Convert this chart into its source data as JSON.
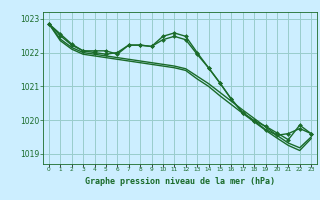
{
  "xlabel": "Graphe pression niveau de la mer (hPa)",
  "bg_color": "#cceeff",
  "grid_color": "#99cccc",
  "line_color": "#1a6b2a",
  "text_color": "#1a6b2a",
  "xlim": [
    -0.5,
    23.5
  ],
  "ylim": [
    1018.7,
    1023.2
  ],
  "yticks": [
    1019,
    1020,
    1021,
    1022,
    1023
  ],
  "xticks": [
    0,
    1,
    2,
    3,
    4,
    5,
    6,
    7,
    8,
    9,
    10,
    11,
    12,
    13,
    14,
    15,
    16,
    17,
    18,
    19,
    20,
    21,
    22,
    23
  ],
  "lines": [
    {
      "x": [
        0,
        1,
        2,
        3,
        4,
        5,
        6,
        7,
        8,
        9,
        10,
        11,
        12,
        13,
        14,
        15,
        16,
        17,
        18,
        19,
        20,
        21,
        22,
        23
      ],
      "y": [
        1022.85,
        1022.55,
        1022.25,
        1022.05,
        1022.05,
        1022.05,
        1021.95,
        1022.22,
        1022.22,
        1022.18,
        1022.38,
        1022.48,
        1022.38,
        1021.95,
        1021.55,
        1021.1,
        1020.62,
        1020.22,
        1019.98,
        1019.72,
        1019.55,
        1019.6,
        1019.75,
        1019.6
      ],
      "marker": true,
      "lw": 1.0
    },
    {
      "x": [
        0,
        1,
        2,
        3,
        4,
        5,
        6,
        7,
        8,
        9,
        10,
        11,
        12,
        13,
        14,
        15,
        16,
        17,
        18,
        19,
        20,
        21,
        22,
        23
      ],
      "y": [
        1022.85,
        1022.4,
        1022.15,
        1022.0,
        1021.95,
        1021.9,
        1021.85,
        1021.8,
        1021.75,
        1021.7,
        1021.65,
        1021.6,
        1021.52,
        1021.3,
        1021.08,
        1020.82,
        1020.56,
        1020.3,
        1020.05,
        1019.8,
        1019.55,
        1019.32,
        1019.18,
        1019.5
      ],
      "marker": false,
      "lw": 1.0
    },
    {
      "x": [
        0,
        1,
        2,
        3,
        4,
        5,
        6,
        7,
        8,
        9,
        10,
        11,
        12,
        13,
        14,
        15,
        16,
        17,
        18,
        19,
        20,
        21,
        22,
        23
      ],
      "y": [
        1022.85,
        1022.35,
        1022.1,
        1021.95,
        1021.9,
        1021.85,
        1021.8,
        1021.75,
        1021.7,
        1021.65,
        1021.6,
        1021.55,
        1021.47,
        1021.22,
        1021.0,
        1020.72,
        1020.46,
        1020.2,
        1019.95,
        1019.7,
        1019.47,
        1019.25,
        1019.1,
        1019.45
      ],
      "marker": false,
      "lw": 1.0
    },
    {
      "x": [
        0,
        1,
        2,
        3,
        4,
        5,
        6,
        7,
        8,
        9,
        10,
        11,
        12,
        13,
        14,
        15,
        16,
        17,
        18,
        19,
        20,
        21,
        22,
        23
      ],
      "y": [
        1022.85,
        1022.5,
        1022.22,
        1022.05,
        1022.0,
        1021.95,
        1022.0,
        1022.22,
        1022.22,
        1022.18,
        1022.48,
        1022.58,
        1022.48,
        1022.0,
        1021.55,
        1021.1,
        1020.62,
        1020.22,
        1019.98,
        1019.82,
        1019.62,
        1019.42,
        1019.85,
        1019.6
      ],
      "marker": true,
      "lw": 1.0
    }
  ]
}
